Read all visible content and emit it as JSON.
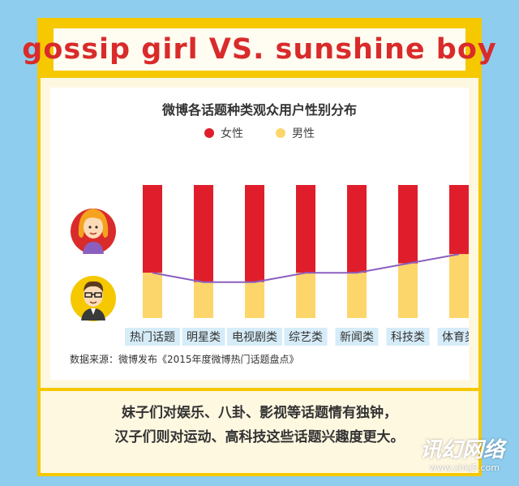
{
  "header": {
    "title": "gossip girl VS. sunshine boy"
  },
  "chart_data": {
    "type": "bar",
    "title": "微博各话题种类观众用户性别分布",
    "categories": [
      "热门话题",
      "明星类",
      "电视剧类",
      "综艺类",
      "新闻类",
      "科技类",
      "体育类"
    ],
    "series": [
      {
        "name": "女性",
        "values": [
          0.66,
          0.73,
          0.73,
          0.66,
          0.66,
          0.59,
          0.52
        ],
        "color": "#e01e2b"
      },
      {
        "name": "男性",
        "values": [
          0.34,
          0.27,
          0.27,
          0.34,
          0.34,
          0.41,
          0.48
        ],
        "color": "#fdd66b"
      }
    ],
    "stacked": true,
    "ylim": [
      0,
      1
    ],
    "trend_line": "男性",
    "legend_position": "top-center",
    "icons": [
      "female-avatar-icon",
      "male-avatar-icon"
    ]
  },
  "source": "数据来源：微博发布《2015年度微博热门话题盘点》",
  "footer": {
    "line1": "妹子们对娱乐、八卦、影视等话题情有独钟，",
    "line2": "汉子们则对运动、高科技这些话题兴趣度更大。"
  },
  "watermark": {
    "text": "讯幻网络",
    "url": "www.xhkj5.com"
  }
}
